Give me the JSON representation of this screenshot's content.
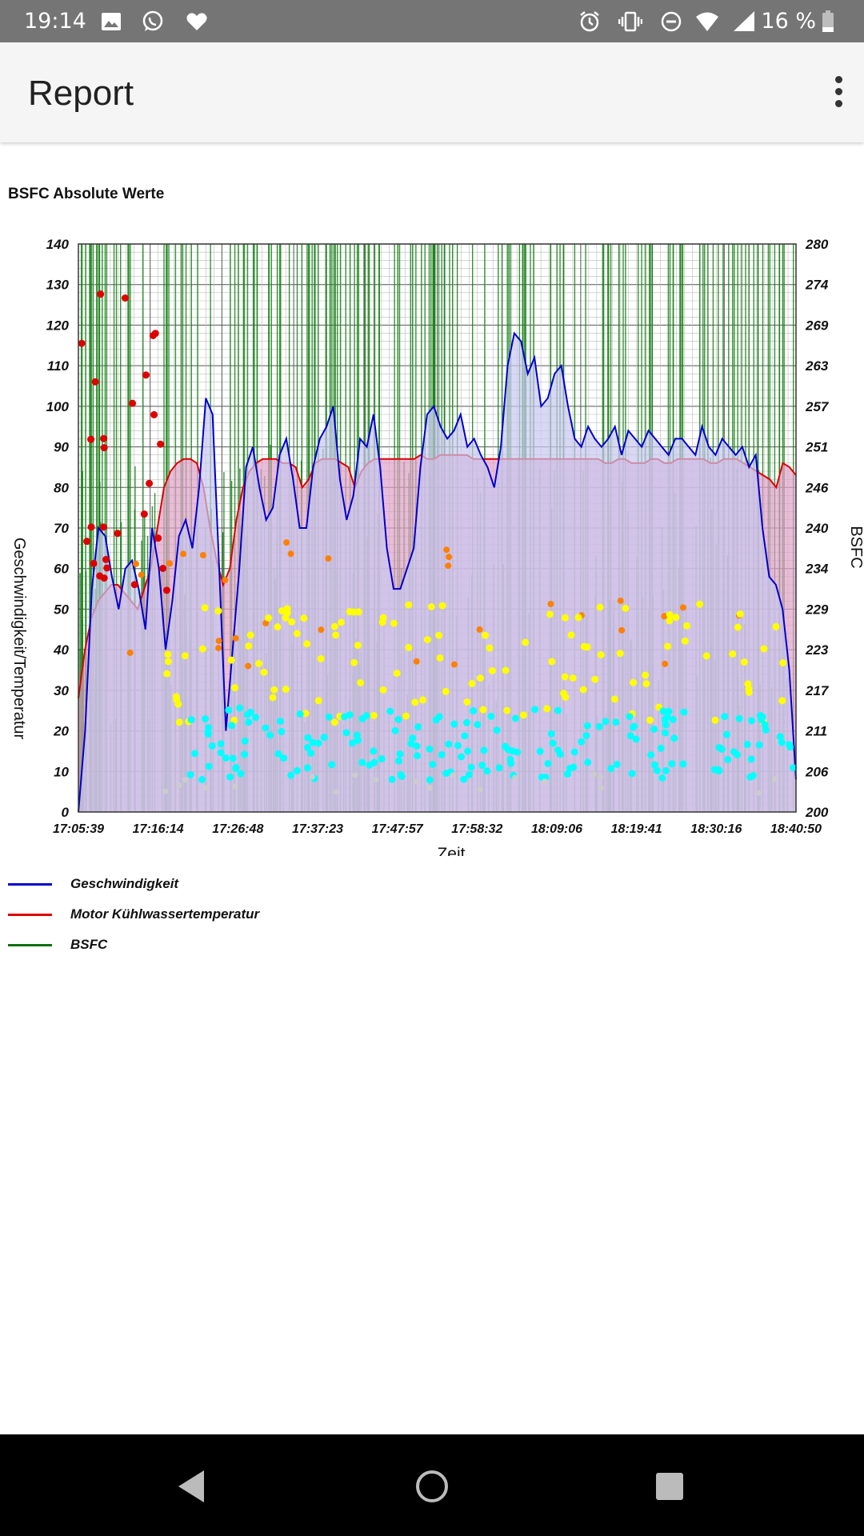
{
  "status_bar": {
    "time": "19:14",
    "battery": "16 %",
    "left_icons": [
      "image-icon",
      "whatsapp-icon",
      "heart-icon"
    ],
    "right_icons": [
      "alarm-icon",
      "vibrate-icon",
      "do-not-disturb-icon",
      "wifi-icon",
      "signal-icon",
      "battery-icon"
    ]
  },
  "app_bar": {
    "title": "Report",
    "menu_icon": "more-vert-icon"
  },
  "chart_data": {
    "type": "line",
    "title": "BSFC Absolute Werte",
    "xlabel": "Zeit",
    "ylabel": "Geschwindigkeit/Temperatur",
    "y2label": "BSFC",
    "x_ticks": [
      "17:05:39",
      "17:16:14",
      "17:26:48",
      "17:37:23",
      "17:47:57",
      "17:58:32",
      "18:09:06",
      "18:19:41",
      "18:30:16",
      "18:40:50"
    ],
    "y_ticks": [
      0,
      10,
      20,
      30,
      40,
      50,
      60,
      70,
      80,
      90,
      100,
      110,
      120,
      130,
      140
    ],
    "y2_ticks": [
      200,
      206,
      211,
      217,
      223,
      229,
      234,
      240,
      246,
      251,
      257,
      263,
      269,
      274,
      280
    ],
    "ylim": [
      0,
      140
    ],
    "y2lim": [
      200,
      280
    ],
    "grid": true,
    "legend_position": "bottom-left",
    "series": [
      {
        "name": "Geschwindigkeit",
        "color": "#0000cc",
        "fill": "#c8c8f0",
        "values": [
          0,
          20,
          55,
          70,
          68,
          58,
          50,
          60,
          62,
          55,
          45,
          70,
          60,
          40,
          52,
          68,
          72,
          65,
          80,
          102,
          98,
          60,
          20,
          40,
          60,
          85,
          90,
          80,
          72,
          75,
          88,
          92,
          82,
          70,
          70,
          85,
          92,
          95,
          100,
          82,
          72,
          78,
          92,
          90,
          98,
          85,
          65,
          55,
          55,
          60,
          65,
          85,
          98,
          100,
          95,
          92,
          94,
          98,
          90,
          92,
          88,
          85,
          80,
          90,
          110,
          118,
          116,
          108,
          112,
          100,
          102,
          108,
          110,
          100,
          92,
          90,
          95,
          92,
          90,
          92,
          95,
          88,
          94,
          92,
          90,
          94,
          92,
          90,
          88,
          92,
          92,
          90,
          88,
          95,
          90,
          88,
          92,
          90,
          88,
          90,
          85,
          88,
          70,
          58,
          56,
          50,
          35,
          8
        ]
      },
      {
        "name": "Motor Kühlwassertemperatur",
        "color": "#dd0000",
        "fill": "#e0a0c8",
        "values": [
          28,
          40,
          48,
          52,
          54,
          56,
          56,
          54,
          52,
          50,
          55,
          60,
          70,
          80,
          84,
          86,
          87,
          87,
          86,
          80,
          70,
          62,
          56,
          60,
          72,
          80,
          84,
          86,
          87,
          87,
          87,
          86,
          86,
          85,
          80,
          82,
          86,
          87,
          87,
          87,
          86,
          85,
          80,
          84,
          86,
          87,
          87,
          87,
          87,
          87,
          87,
          87,
          88,
          87,
          87,
          88,
          88,
          88,
          88,
          88,
          87,
          87,
          87,
          87,
          87,
          87,
          87,
          87,
          87,
          87,
          87,
          87,
          87,
          87,
          87,
          87,
          87,
          87,
          87,
          87,
          86,
          86,
          87,
          87,
          86,
          86,
          86,
          87,
          87,
          86,
          86,
          87,
          87,
          87,
          87,
          87,
          86,
          86,
          87,
          87,
          87,
          86,
          85,
          84,
          83,
          82,
          80,
          86,
          85,
          83
        ]
      },
      {
        "name": "BSFC",
        "color": "#107010",
        "values": []
      }
    ]
  }
}
